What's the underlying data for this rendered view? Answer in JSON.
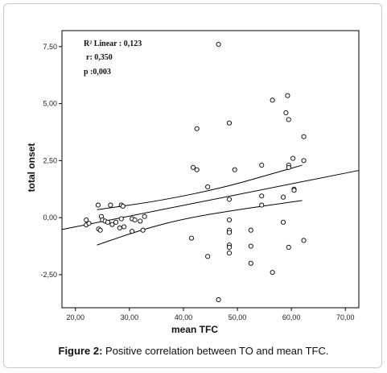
{
  "caption": {
    "label": "Figure 2:",
    "text": " Positive correlation between TO and mean TFC."
  },
  "chart_data": {
    "type": "scatter",
    "xlabel": "mean TFC",
    "ylabel": "total onset",
    "xlim": [
      17.5,
      72.5
    ],
    "ylim": [
      -3.95,
      8.2
    ],
    "xticks": [
      20,
      30,
      40,
      50,
      60,
      70
    ],
    "yticks": [
      -2.5,
      0,
      2.5,
      5,
      7.5
    ],
    "xtick_labels": [
      "20,00",
      "30,00",
      "40,00",
      "50,00",
      "60,00",
      "70,00"
    ],
    "ytick_labels": [
      "-2,50",
      "0,00",
      "2,50",
      "5,00",
      "7,50"
    ],
    "annotation": [
      "R² Linear : 0,123",
      "r: 0,350",
      "p :0,003"
    ],
    "fit_line": {
      "x": [
        17.5,
        72.5
      ],
      "y": [
        -0.52,
        2.07
      ]
    },
    "confidence_band": {
      "upper": {
        "x": [
          24.0,
          36.0,
          48.0,
          56.0,
          62.0
        ],
        "y": [
          0.35,
          0.75,
          1.35,
          1.9,
          2.3
        ]
      },
      "lower": {
        "x": [
          24.0,
          32.0,
          40.0,
          50.0,
          62.0
        ],
        "y": [
          -1.2,
          -0.55,
          -0.05,
          0.35,
          0.75
        ]
      }
    },
    "points": [
      {
        "x": 22.0,
        "y": -0.1
      },
      {
        "x": 22.0,
        "y": -0.32
      },
      {
        "x": 22.5,
        "y": -0.25
      },
      {
        "x": 24.2,
        "y": 0.55
      },
      {
        "x": 24.3,
        "y": -0.5
      },
      {
        "x": 24.6,
        "y": -0.55
      },
      {
        "x": 24.8,
        "y": 0.05
      },
      {
        "x": 25.0,
        "y": -0.1
      },
      {
        "x": 25.5,
        "y": -0.15
      },
      {
        "x": 26.0,
        "y": -0.2
      },
      {
        "x": 26.5,
        "y": 0.55
      },
      {
        "x": 26.8,
        "y": -0.3
      },
      {
        "x": 27.5,
        "y": -0.2
      },
      {
        "x": 28.2,
        "y": -0.45
      },
      {
        "x": 28.5,
        "y": 0.55
      },
      {
        "x": 28.8,
        "y": 0.5
      },
      {
        "x": 28.5,
        "y": -0.05
      },
      {
        "x": 29.0,
        "y": -0.4
      },
      {
        "x": 30.5,
        "y": -0.05
      },
      {
        "x": 31.0,
        "y": -0.1
      },
      {
        "x": 30.5,
        "y": -0.6
      },
      {
        "x": 32.0,
        "y": -0.15
      },
      {
        "x": 32.5,
        "y": -0.55
      },
      {
        "x": 32.8,
        "y": 0.05
      },
      {
        "x": 41.5,
        "y": -0.9
      },
      {
        "x": 41.8,
        "y": 2.2
      },
      {
        "x": 42.5,
        "y": 2.1
      },
      {
        "x": 42.5,
        "y": 3.9
      },
      {
        "x": 44.5,
        "y": 1.35
      },
      {
        "x": 44.5,
        "y": -1.7
      },
      {
        "x": 46.5,
        "y": 7.6
      },
      {
        "x": 46.5,
        "y": -3.6
      },
      {
        "x": 48.5,
        "y": 4.15
      },
      {
        "x": 48.5,
        "y": 0.8
      },
      {
        "x": 48.5,
        "y": -0.1
      },
      {
        "x": 48.5,
        "y": -0.55
      },
      {
        "x": 48.5,
        "y": -0.65
      },
      {
        "x": 48.5,
        "y": -1.2
      },
      {
        "x": 48.5,
        "y": -1.3
      },
      {
        "x": 48.5,
        "y": -1.55
      },
      {
        "x": 49.5,
        "y": 2.1
      },
      {
        "x": 52.5,
        "y": -0.55
      },
      {
        "x": 52.5,
        "y": -1.25
      },
      {
        "x": 52.5,
        "y": -2.0
      },
      {
        "x": 54.5,
        "y": 2.3
      },
      {
        "x": 54.5,
        "y": 0.95
      },
      {
        "x": 54.5,
        "y": 0.55
      },
      {
        "x": 56.5,
        "y": 5.15
      },
      {
        "x": 56.5,
        "y": -2.4
      },
      {
        "x": 58.5,
        "y": 0.9
      },
      {
        "x": 58.5,
        "y": -0.2
      },
      {
        "x": 59.0,
        "y": 4.6
      },
      {
        "x": 59.3,
        "y": 5.35
      },
      {
        "x": 59.5,
        "y": 4.3
      },
      {
        "x": 59.5,
        "y": 2.3
      },
      {
        "x": 59.5,
        "y": 2.2
      },
      {
        "x": 59.5,
        "y": -1.3
      },
      {
        "x": 60.3,
        "y": 2.6
      },
      {
        "x": 60.5,
        "y": 1.25
      },
      {
        "x": 60.5,
        "y": 1.2
      },
      {
        "x": 62.3,
        "y": 3.55
      },
      {
        "x": 62.3,
        "y": 2.5
      },
      {
        "x": 62.3,
        "y": -1.0
      }
    ],
    "grid": false,
    "colors": {
      "marker_stroke": "#000000",
      "line": "#000000",
      "axis": "#000000"
    }
  }
}
